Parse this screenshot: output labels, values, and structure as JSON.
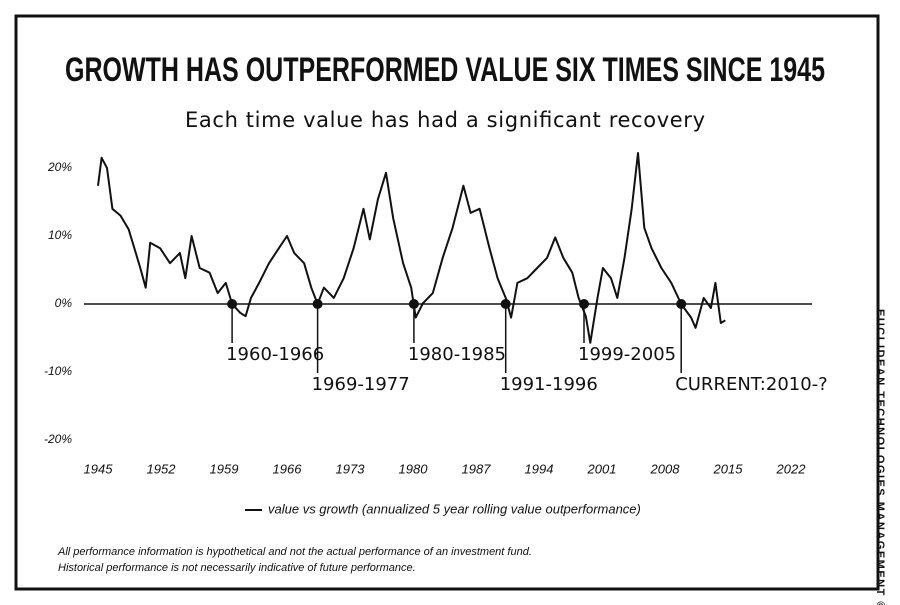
{
  "chart_data": {
    "type": "line",
    "title": "GROWTH HAS OUTPERFORMED VALUE SIX TIMES SINCE 1945",
    "subtitle": "Each time value has had a significant recovery",
    "x": [
      1945,
      1945.4,
      1946,
      1946.6,
      1947.5,
      1948.4,
      1949.2,
      1949.7,
      1950.3,
      1950.8,
      1951.9,
      1953,
      1954.1,
      1954.7,
      1955.4,
      1956.3,
      1957.4,
      1958.3,
      1959.2,
      1959.9,
      1960.8,
      1961.4,
      1962,
      1962.9,
      1964,
      1965.1,
      1966,
      1966.8,
      1967.9,
      1968.7,
      1969.4,
      1970.1,
      1971.2,
      1972.3,
      1973.4,
      1974.5,
      1975.2,
      1976.1,
      1977,
      1977.8,
      1978.9,
      1979.8,
      1980.3,
      1981.1,
      1982.2,
      1983.3,
      1984.4,
      1985.6,
      1986.4,
      1987.4,
      1988.5,
      1989.4,
      1990.3,
      1990.9,
      1991.6,
      1992.7,
      1993.8,
      1994.9,
      1995.8,
      1996.7,
      1997.7,
      1998.4,
      1999.2,
      1999.7,
      2000.5,
      2001.1,
      2002,
      2002.7,
      2003.5,
      2004.3,
      2005,
      2005.7,
      2006.5,
      2007.6,
      2008.7,
      2009.8,
      2010.9,
      2011.4,
      2012.3,
      2013.1,
      2013.6,
      2014.2,
      2014.7
    ],
    "series": [
      {
        "name": "value vs growth (annualized 5 year rolling value outperformance)",
        "color": "#111111",
        "values": [
          17.4,
          21.5,
          20,
          14,
          13,
          11,
          7.5,
          5.3,
          2.4,
          9,
          8.2,
          6,
          7.5,
          3.8,
          10,
          5.3,
          4.6,
          1.6,
          3.1,
          0,
          -1.3,
          -1.8,
          0.9,
          3.1,
          6,
          8.2,
          10,
          7.5,
          6,
          2.4,
          0,
          2.4,
          0.9,
          3.8,
          8.2,
          14,
          9.5,
          15.4,
          19.3,
          12.6,
          6,
          2.4,
          -2,
          0.1,
          1.6,
          6.8,
          11.2,
          17.4,
          13.4,
          14,
          8.2,
          3.8,
          0.9,
          -2,
          3.1,
          3.8,
          5.3,
          6.8,
          9.8,
          6.8,
          4.6,
          0.9,
          -1.8,
          -5.7,
          0.9,
          5.3,
          3.8,
          0.9,
          6.8,
          14,
          22.2,
          11.2,
          8.2,
          5.3,
          3.1,
          0,
          -2,
          -3.5,
          0.9,
          -0.6,
          3.1,
          -2.8,
          -2.4
        ]
      }
    ],
    "xlim": [
      1944,
      2025
    ],
    "ylim": [
      -22,
      22
    ],
    "xticks": [
      1945,
      1952,
      1959,
      1966,
      1973,
      1980,
      1987,
      1994,
      2001,
      2008,
      2015,
      2022
    ],
    "yticks": [
      {
        "value": 20,
        "label": "20%"
      },
      {
        "value": 10,
        "label": "10%"
      },
      {
        "value": 0,
        "label": "0%"
      },
      {
        "value": -10,
        "label": "-10%"
      },
      {
        "value": -20,
        "label": "-20%"
      }
    ],
    "annotations": [
      {
        "text": "1960-1966",
        "x": 1959.9
      },
      {
        "text": "1969-1977",
        "x": 1969.4
      },
      {
        "text": "1980-1985",
        "x": 1980.1
      },
      {
        "text": "1991-1996",
        "x": 1990.3
      },
      {
        "text": "1999-2005",
        "x": 1999
      },
      {
        "text": "CURRENT:2010-?",
        "x": 2009.8
      }
    ],
    "legend": "bottom"
  },
  "footnotes": [
    "All performance information is hypothetical and not the actual performance of an investment fund.",
    "Historical performance is not necessarily indicative of future performance."
  ],
  "credit": "EUCLIDEAN TECHNOLOGIES MANAGEMENT ©"
}
